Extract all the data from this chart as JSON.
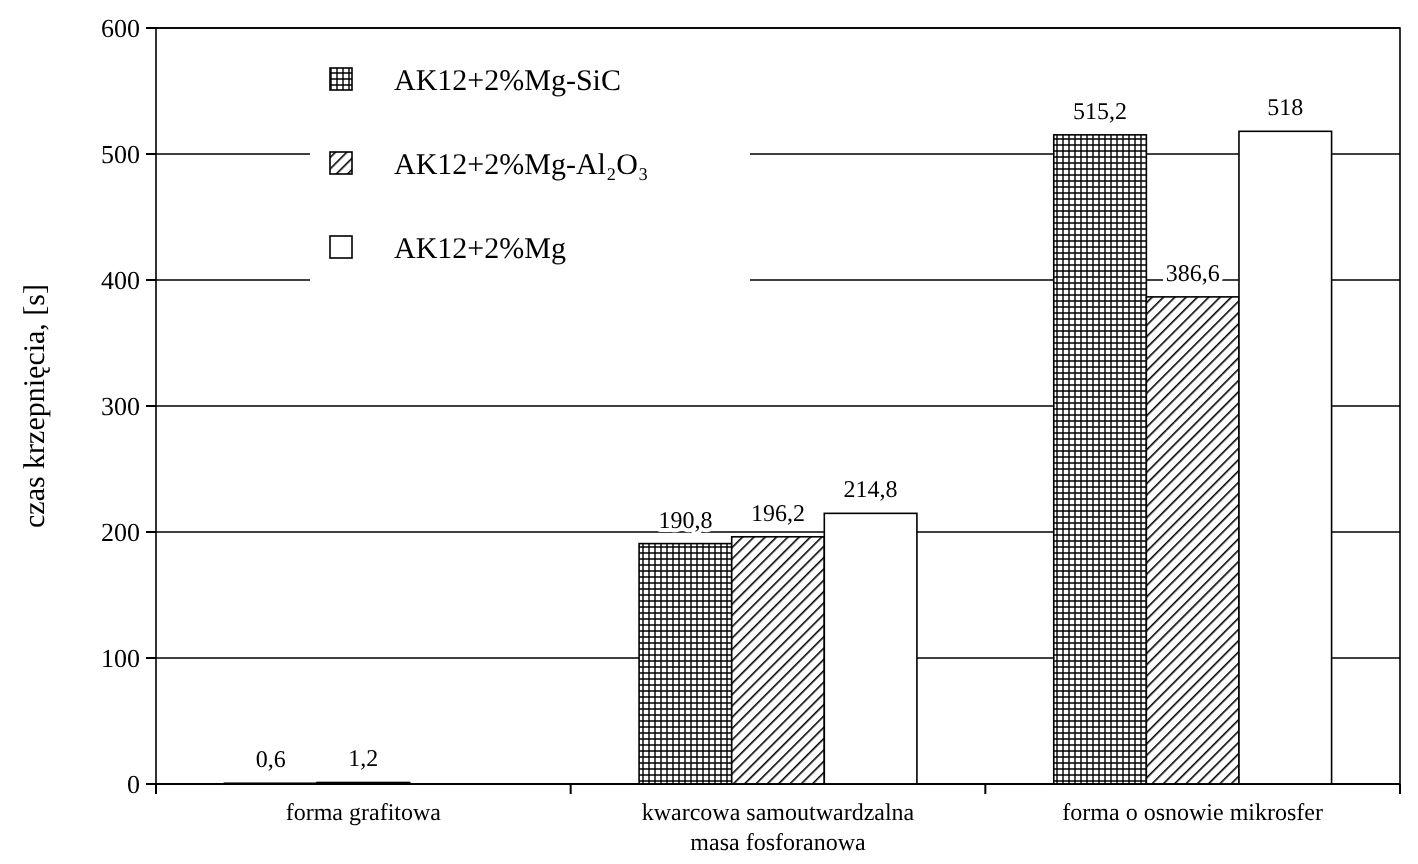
{
  "chart_data": {
    "type": "bar",
    "ylabel": "czas krzepnięcia, [s]",
    "categories": [
      "forma grafitowa",
      "kwarcowa samoutwardzalna masa fosforanowa",
      "forma o osnowie mikrosfer"
    ],
    "series": [
      {
        "name": "AK12+2%Mg-SiC",
        "color": "#000000",
        "values": [
          0.6,
          190.8,
          515.2
        ],
        "value_labels": [
          "0,6",
          "190,8",
          "515,2"
        ]
      },
      {
        "name": "AK12+2%Mg-Al₂O₃",
        "color": "#000000",
        "values": [
          1.2,
          196.2,
          386.6
        ],
        "value_labels": [
          "1,2",
          "196,2",
          "386,6"
        ]
      },
      {
        "name": "AK12+2%Mg",
        "color": "#ffffff",
        "values": [
          null,
          214.8,
          518
        ],
        "value_labels": [
          null,
          "214,8",
          "518"
        ]
      }
    ],
    "ylim": [
      0,
      600
    ],
    "yticks": [
      0,
      100,
      200,
      300,
      400,
      500,
      600
    ],
    "grid": "y",
    "legend": "top left"
  }
}
